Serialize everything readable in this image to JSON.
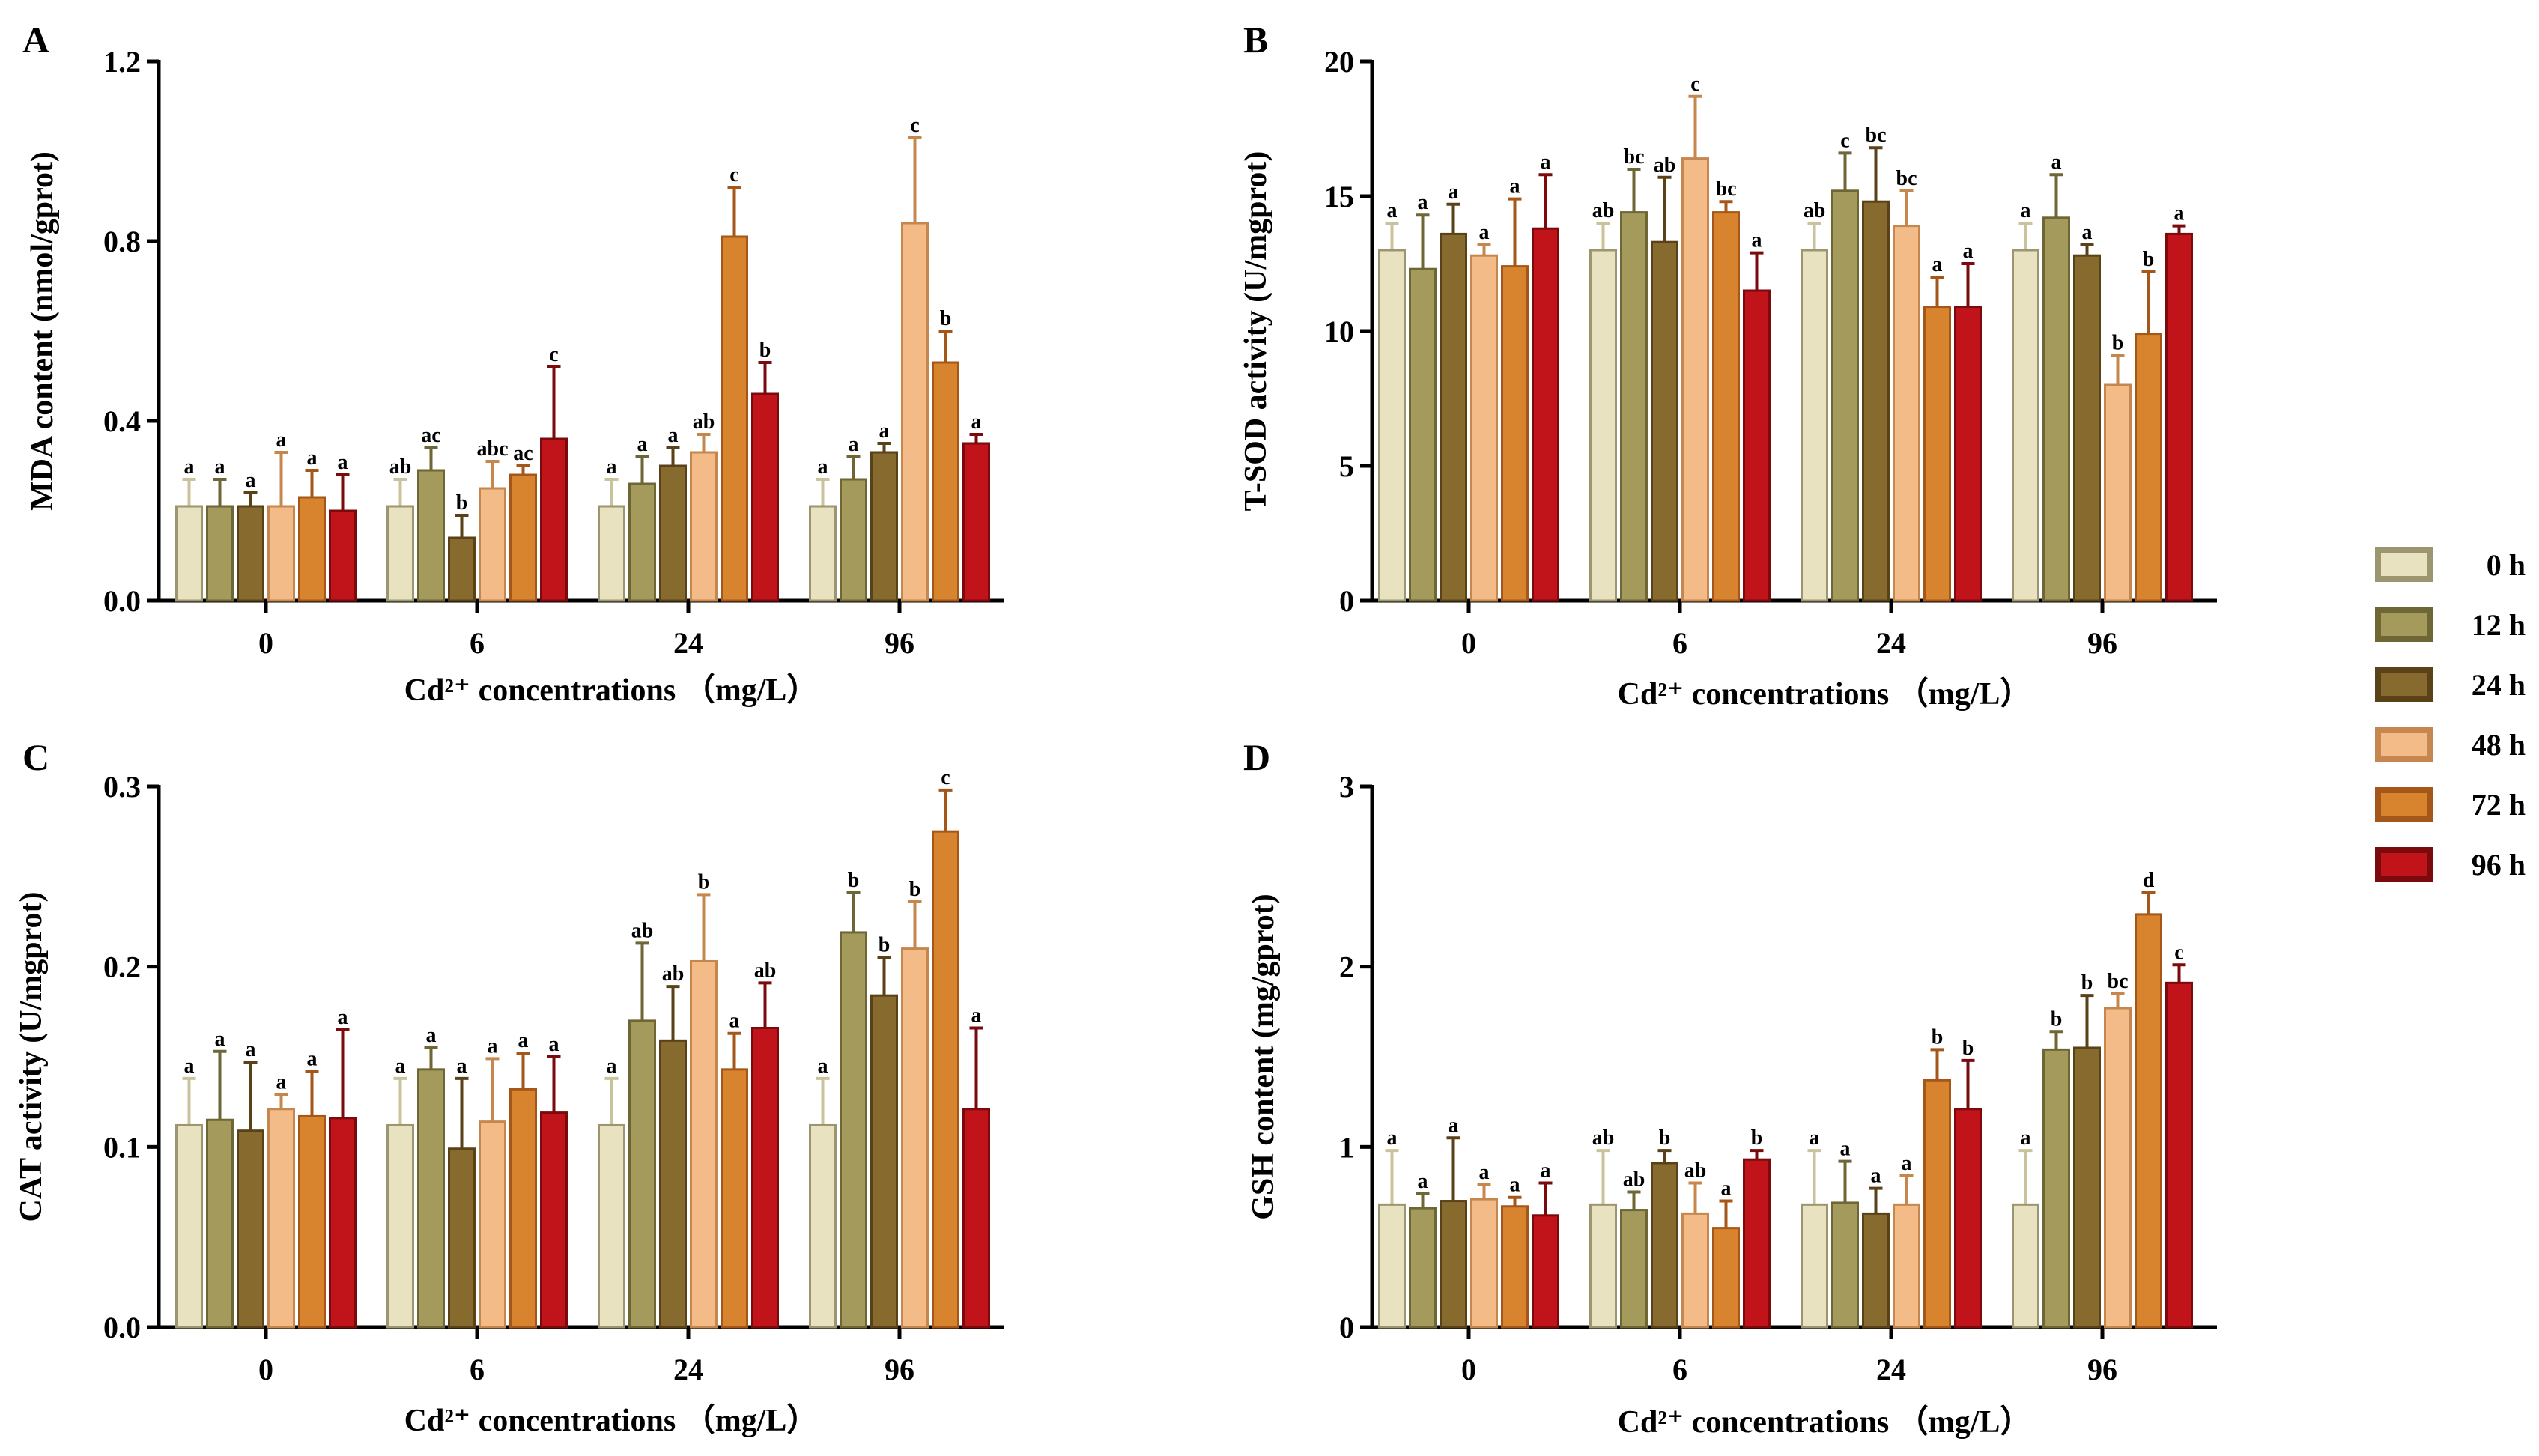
{
  "figure": {
    "legend": [
      {
        "label": "0  h",
        "color": "#e8e2c0",
        "border": "#9b9670"
      },
      {
        "label": "12 h",
        "color": "#a39a5c",
        "border": "#6e6634"
      },
      {
        "label": "24 h",
        "color": "#876a2e",
        "border": "#5a4218"
      },
      {
        "label": "48 h",
        "color": "#f2bb88",
        "border": "#c5874d"
      },
      {
        "label": "72 h",
        "color": "#d8832e",
        "border": "#a5571a"
      },
      {
        "label": "96 h",
        "color": "#c0141a",
        "border": "#7a0a0c"
      }
    ]
  },
  "chart_data": [
    {
      "id": "A",
      "panel_label": "A",
      "type": "bar",
      "ylabel": "MDA content (nmol/gprot)",
      "xlabel": "Cd²⁺ concentrations （mg/L）",
      "categories": [
        "0",
        "6",
        "24",
        "96"
      ],
      "ylim": [
        0,
        1.2
      ],
      "yticks": [
        "0.0",
        "0.4",
        "0.8",
        "1.2"
      ],
      "ytick_values": [
        0,
        0.4,
        0.8,
        1.2
      ],
      "series": [
        {
          "name": "0 h",
          "values": [
            0.21,
            0.21,
            0.21,
            0.21
          ],
          "errors": [
            0.06,
            0.06,
            0.06,
            0.06
          ],
          "sig": [
            "a",
            "ab",
            "a",
            "a"
          ]
        },
        {
          "name": "12 h",
          "values": [
            0.21,
            0.29,
            0.26,
            0.27
          ],
          "errors": [
            0.06,
            0.05,
            0.06,
            0.05
          ],
          "sig": [
            "a",
            "ac",
            "a",
            "a"
          ]
        },
        {
          "name": "24 h",
          "values": [
            0.21,
            0.14,
            0.3,
            0.33
          ],
          "errors": [
            0.03,
            0.05,
            0.04,
            0.02
          ],
          "sig": [
            "a",
            "b",
            "a",
            "a"
          ]
        },
        {
          "name": "48 h",
          "values": [
            0.21,
            0.25,
            0.33,
            0.84
          ],
          "errors": [
            0.12,
            0.06,
            0.04,
            0.19
          ],
          "sig": [
            "a",
            "abc",
            "ab",
            "c"
          ]
        },
        {
          "name": "72 h",
          "values": [
            0.23,
            0.28,
            0.81,
            0.53
          ],
          "errors": [
            0.06,
            0.02,
            0.11,
            0.07
          ],
          "sig": [
            "a",
            "ac",
            "c",
            "b"
          ]
        },
        {
          "name": "96 h",
          "values": [
            0.2,
            0.36,
            0.46,
            0.35
          ],
          "errors": [
            0.08,
            0.16,
            0.07,
            0.02
          ],
          "sig": [
            "a",
            "c",
            "b",
            "a"
          ]
        }
      ]
    },
    {
      "id": "B",
      "panel_label": "B",
      "type": "bar",
      "ylabel": "T-SOD activity (U/mgprot)",
      "xlabel": "Cd²⁺ concentrations （mg/L）",
      "categories": [
        "0",
        "6",
        "24",
        "96"
      ],
      "ylim": [
        0,
        20
      ],
      "yticks": [
        "0",
        "5",
        "10",
        "15",
        "20"
      ],
      "ytick_values": [
        0,
        5,
        10,
        15,
        20
      ],
      "series": [
        {
          "name": "0 h",
          "values": [
            13.0,
            13.0,
            13.0,
            13.0
          ],
          "errors": [
            1.0,
            1.0,
            1.0,
            1.0
          ],
          "sig": [
            "a",
            "ab",
            "ab",
            "a"
          ]
        },
        {
          "name": "12 h",
          "values": [
            12.3,
            14.4,
            15.2,
            14.2
          ],
          "errors": [
            2.0,
            1.6,
            1.4,
            1.6
          ],
          "sig": [
            "a",
            "bc",
            "c",
            "a"
          ]
        },
        {
          "name": "24 h",
          "values": [
            13.6,
            13.3,
            14.8,
            12.8
          ],
          "errors": [
            1.1,
            2.4,
            2.0,
            0.4
          ],
          "sig": [
            "a",
            "ab",
            "bc",
            "a"
          ]
        },
        {
          "name": "48 h",
          "values": [
            12.8,
            16.4,
            13.9,
            8.0
          ],
          "errors": [
            0.4,
            2.3,
            1.3,
            1.1
          ],
          "sig": [
            "a",
            "c",
            "bc",
            "b"
          ]
        },
        {
          "name": "72 h",
          "values": [
            12.4,
            14.4,
            10.9,
            9.9
          ],
          "errors": [
            2.5,
            0.4,
            1.1,
            2.3
          ],
          "sig": [
            "a",
            "bc",
            "a",
            "b"
          ]
        },
        {
          "name": "96 h",
          "values": [
            13.8,
            11.5,
            10.9,
            13.6
          ],
          "errors": [
            2.0,
            1.4,
            1.6,
            0.3
          ],
          "sig": [
            "a",
            "a",
            "a",
            "a"
          ]
        }
      ]
    },
    {
      "id": "C",
      "panel_label": "C",
      "type": "bar",
      "ylabel": "CAT activity (U/mgprot)",
      "xlabel": "Cd²⁺ concentrations （mg/L）",
      "categories": [
        "0",
        "6",
        "24",
        "96"
      ],
      "ylim": [
        0,
        0.3
      ],
      "yticks": [
        "0.0",
        "0.1",
        "0.2",
        "0.3"
      ],
      "ytick_values": [
        0,
        0.1,
        0.2,
        0.3
      ],
      "series": [
        {
          "name": "0 h",
          "values": [
            0.112,
            0.112,
            0.112,
            0.112
          ],
          "errors": [
            0.026,
            0.026,
            0.026,
            0.026
          ],
          "sig": [
            "a",
            "a",
            "a",
            "a"
          ]
        },
        {
          "name": "12 h",
          "values": [
            0.115,
            0.143,
            0.17,
            0.219
          ],
          "errors": [
            0.038,
            0.012,
            0.043,
            0.022
          ],
          "sig": [
            "a",
            "a",
            "ab",
            "b"
          ]
        },
        {
          "name": "24 h",
          "values": [
            0.109,
            0.099,
            0.159,
            0.184
          ],
          "errors": [
            0.038,
            0.039,
            0.03,
            0.021
          ],
          "sig": [
            "a",
            "a",
            "ab",
            "b"
          ]
        },
        {
          "name": "48 h",
          "values": [
            0.121,
            0.114,
            0.203,
            0.21
          ],
          "errors": [
            0.008,
            0.035,
            0.037,
            0.026
          ],
          "sig": [
            "a",
            "a",
            "b",
            "b"
          ]
        },
        {
          "name": "72 h",
          "values": [
            0.117,
            0.132,
            0.143,
            0.275
          ],
          "errors": [
            0.025,
            0.02,
            0.02,
            0.023
          ],
          "sig": [
            "a",
            "a",
            "a",
            "c"
          ]
        },
        {
          "name": "96 h",
          "values": [
            0.116,
            0.119,
            0.166,
            0.121
          ],
          "errors": [
            0.049,
            0.031,
            0.025,
            0.045
          ],
          "sig": [
            "a",
            "a",
            "ab",
            "a"
          ]
        }
      ]
    },
    {
      "id": "D",
      "panel_label": "D",
      "type": "bar",
      "ylabel": "GSH content (mg/gprot)",
      "xlabel": "Cd²⁺ concentrations （mg/L）",
      "categories": [
        "0",
        "6",
        "24",
        "96"
      ],
      "ylim": [
        0,
        3
      ],
      "yticks": [
        "0",
        "1",
        "2",
        "3"
      ],
      "ytick_values": [
        0,
        1,
        2,
        3
      ],
      "series": [
        {
          "name": "0 h",
          "values": [
            0.68,
            0.68,
            0.68,
            0.68
          ],
          "errors": [
            0.3,
            0.3,
            0.3,
            0.3
          ],
          "sig": [
            "a",
            "ab",
            "a",
            "a"
          ]
        },
        {
          "name": "12 h",
          "values": [
            0.66,
            0.65,
            0.69,
            1.54
          ],
          "errors": [
            0.08,
            0.1,
            0.23,
            0.1
          ],
          "sig": [
            "a",
            "ab",
            "a",
            "b"
          ]
        },
        {
          "name": "24 h",
          "values": [
            0.7,
            0.91,
            0.63,
            1.55
          ],
          "errors": [
            0.35,
            0.07,
            0.14,
            0.29
          ],
          "sig": [
            "a",
            "b",
            "a",
            "b"
          ]
        },
        {
          "name": "48 h",
          "values": [
            0.71,
            0.63,
            0.68,
            1.77
          ],
          "errors": [
            0.08,
            0.17,
            0.16,
            0.08
          ],
          "sig": [
            "a",
            "ab",
            "a",
            "bc"
          ]
        },
        {
          "name": "72 h",
          "values": [
            0.67,
            0.55,
            1.37,
            2.29
          ],
          "errors": [
            0.05,
            0.15,
            0.17,
            0.12
          ],
          "sig": [
            "a",
            "a",
            "b",
            "d"
          ]
        },
        {
          "name": "96 h",
          "values": [
            0.62,
            0.93,
            1.21,
            1.91
          ],
          "errors": [
            0.18,
            0.05,
            0.27,
            0.1
          ],
          "sig": [
            "a",
            "b",
            "b",
            "c"
          ]
        }
      ]
    }
  ]
}
